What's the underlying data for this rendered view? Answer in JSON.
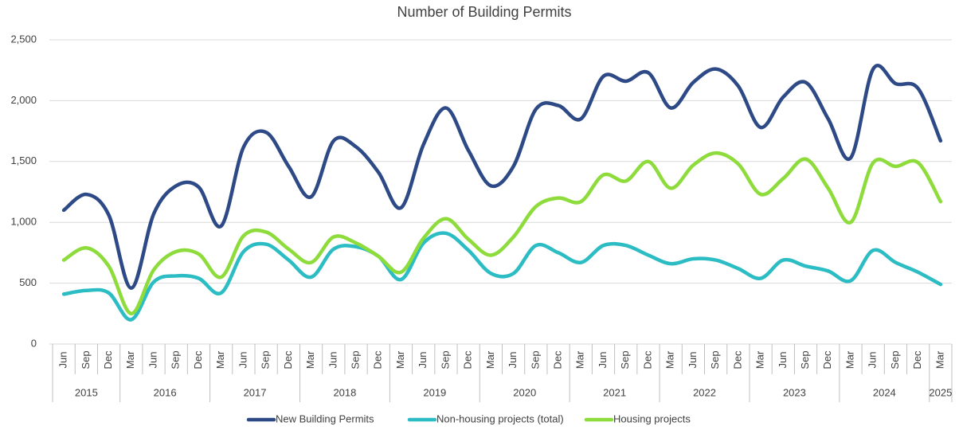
{
  "chart_data": {
    "type": "line",
    "title": "Number of Building Permits",
    "categories": [
      "Jun",
      "Sep",
      "Dec",
      "Mar",
      "Jun",
      "Sep",
      "Dec",
      "Mar",
      "Jun",
      "Sep",
      "Dec",
      "Mar",
      "Jun",
      "Sep",
      "Dec",
      "Mar",
      "Jun",
      "Sep",
      "Dec",
      "Mar",
      "Jun",
      "Sep",
      "Dec",
      "Mar",
      "Jun",
      "Sep",
      "Dec",
      "Mar",
      "Jun",
      "Sep",
      "Dec",
      "Mar",
      "Jun",
      "Sep",
      "Dec",
      "Mar",
      "Jun",
      "Sep",
      "Dec",
      "Mar"
    ],
    "years": [
      "2015",
      "2016",
      "2017",
      "2018",
      "2019",
      "2020",
      "2021",
      "2022",
      "2023",
      "2024",
      "2025"
    ],
    "ylim": [
      0,
      2500
    ],
    "yticks": [
      0,
      500,
      {
        "value": 1000,
        "label": "1,000"
      },
      {
        "value": 1500,
        "label": "1,500"
      },
      {
        "value": 2000,
        "label": "2,000"
      },
      {
        "value": 2500,
        "label": "2,500"
      }
    ],
    "grid": true,
    "legend": "bottom",
    "series": [
      {
        "name": "New Building Permits",
        "color": "#2e4a86",
        "values": [
          1100,
          1230,
          1060,
          460,
          1070,
          1300,
          1290,
          970,
          1620,
          1740,
          1460,
          1210,
          1670,
          1620,
          1410,
          1120,
          1640,
          1940,
          1590,
          1300,
          1460,
          1930,
          1960,
          1850,
          2200,
          2160,
          2230,
          1940,
          2150,
          2260,
          2120,
          1780,
          2030,
          2150,
          1850,
          1530,
          2260,
          2140,
          2100,
          1670
        ]
      },
      {
        "name": "Non-housing projects (total)",
        "color": "#2bbcc4",
        "values": [
          410,
          440,
          420,
          200,
          510,
          560,
          540,
          420,
          760,
          820,
          690,
          550,
          780,
          800,
          720,
          530,
          830,
          910,
          770,
          580,
          580,
          810,
          750,
          670,
          810,
          810,
          730,
          660,
          700,
          690,
          620,
          540,
          690,
          640,
          600,
          520,
          770,
          670,
          590,
          490
        ]
      },
      {
        "name": "Housing projects",
        "color": "#8ddc3c",
        "values": [
          690,
          790,
          640,
          250,
          610,
          760,
          740,
          550,
          890,
          920,
          780,
          670,
          880,
          830,
          720,
          590,
          870,
          1030,
          860,
          730,
          880,
          1130,
          1200,
          1170,
          1390,
          1340,
          1500,
          1280,
          1470,
          1570,
          1480,
          1230,
          1360,
          1520,
          1280,
          1000,
          1490,
          1460,
          1490,
          1170
        ]
      }
    ]
  }
}
